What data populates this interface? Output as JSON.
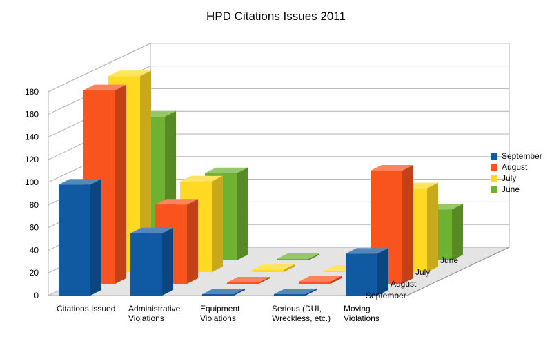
{
  "chart_data": {
    "type": "bar",
    "title": "HPD Citations Issues 2011",
    "categories": [
      "Citations Issued",
      "Administrative Violations",
      "Equipment Violations",
      "Serious (DUI, Wreckless, etc.)",
      "Moving Violations"
    ],
    "series": [
      {
        "name": "September",
        "color": "#0f5aa3",
        "values": [
          98,
          55,
          1,
          0,
          37
        ]
      },
      {
        "name": "August",
        "color": "#f9531e",
        "values": [
          171,
          70,
          0,
          2,
          100
        ]
      },
      {
        "name": "July",
        "color": "#ffd922",
        "values": [
          173,
          80,
          2,
          0,
          74
        ]
      },
      {
        "name": "June",
        "color": "#6fb130",
        "values": [
          127,
          77,
          0,
          2,
          45
        ]
      }
    ],
    "depth_labels": [
      "June",
      "July",
      "August",
      "September"
    ],
    "yticks": [
      0,
      20,
      40,
      60,
      80,
      100,
      120,
      140,
      160,
      180
    ],
    "ylim": [
      0,
      180
    ],
    "grid": true,
    "legend_position": "right"
  }
}
